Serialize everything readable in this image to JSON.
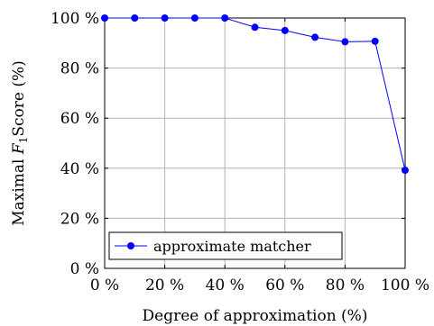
{
  "chart_data": {
    "type": "line",
    "xlabel": "Degree of approximation (%)",
    "ylabel_prefix": "Maximal ",
    "ylabel_italic": "F",
    "ylabel_sub": "1",
    "ylabel_suffix": "Score (%)",
    "xlim": [
      0,
      100
    ],
    "ylim": [
      0,
      100
    ],
    "xticks": [
      0,
      20,
      40,
      60,
      80,
      100
    ],
    "yticks": [
      0,
      20,
      40,
      60,
      80,
      100
    ],
    "xtick_labels": [
      "0 %",
      "20 %",
      "40 %",
      "60 %",
      "80 %",
      "100 %"
    ],
    "ytick_labels": [
      "0 %",
      "20 %",
      "40 %",
      "60 %",
      "80 %",
      "100 %"
    ],
    "grid": true,
    "legend_position": "bottom-left",
    "series": [
      {
        "name": "approximate matcher",
        "color": "#0000ff",
        "marker": "circle",
        "x": [
          0,
          10,
          20,
          30,
          40,
          50,
          60,
          70,
          80,
          90,
          100
        ],
        "y": [
          100,
          100,
          100,
          100,
          100,
          96.3,
          95,
          92.3,
          90.5,
          90.7,
          39.2
        ]
      }
    ]
  }
}
